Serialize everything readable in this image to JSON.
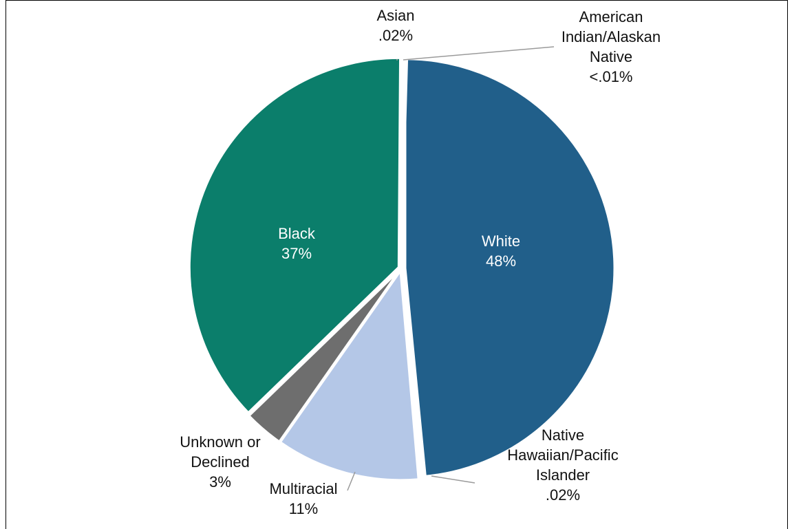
{
  "chart_data": {
    "type": "pie",
    "slices": [
      {
        "id": "white",
        "label_lines": [
          "White",
          "48%"
        ],
        "value": 48,
        "color": "#215F8A"
      },
      {
        "id": "nhpi",
        "label_lines": [
          "Native",
          "Hawaiian/Pacific",
          "Islander",
          ".02%"
        ],
        "value": 0.02,
        "color": "#FFFFFF"
      },
      {
        "id": "multiracial",
        "label_lines": [
          "Multiracial",
          "11%"
        ],
        "value": 11,
        "color": "#B4C7E7"
      },
      {
        "id": "unknown",
        "label_lines": [
          "Unknown or",
          "Declined",
          "3%"
        ],
        "value": 3,
        "color": "#6E6E6E"
      },
      {
        "id": "black",
        "label_lines": [
          "Black",
          "37%"
        ],
        "value": 37,
        "color": "#0B7E6B"
      },
      {
        "id": "asian",
        "label_lines": [
          "Asian",
          ".02%"
        ],
        "value": 0.02,
        "color": "#FFFFFF"
      },
      {
        "id": "aian",
        "label_lines": [
          "American",
          "Indian/Alaskan",
          "Native",
          "<.01%"
        ],
        "value": 0.01,
        "color": "#FFFFFF"
      }
    ],
    "legend": "none"
  }
}
